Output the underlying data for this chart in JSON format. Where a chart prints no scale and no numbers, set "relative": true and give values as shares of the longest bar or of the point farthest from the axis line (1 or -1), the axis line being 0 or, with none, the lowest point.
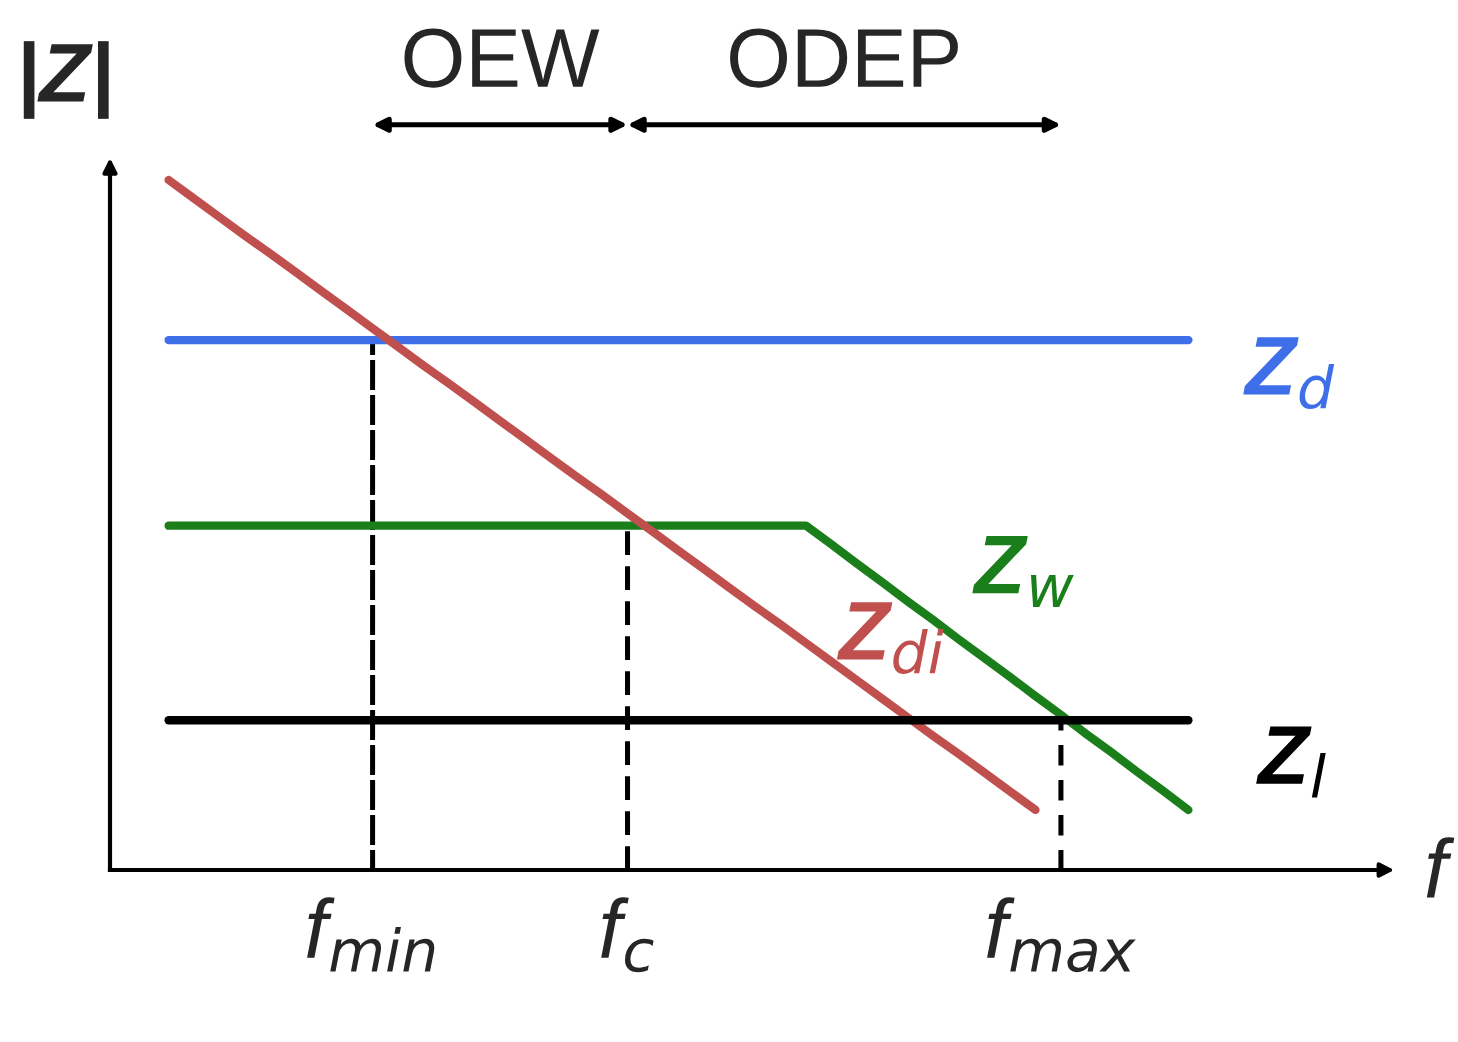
{
  "chart_data": {
    "type": "line",
    "relative": true,
    "xlabel": "f",
    "ylabel": "|Z|",
    "categories": [
      null,
      null,
      null,
      null,
      null,
      null,
      null,
      null,
      "f$_{min}$",
      null,
      null,
      null,
      null,
      null,
      null,
      null,
      null,
      null,
      "f$_{c}$",
      null,
      null,
      null,
      null,
      null,
      null,
      null,
      null,
      null,
      null,
      null,
      null,
      null,
      null,
      null,
      null,
      "f$_{max}$",
      null,
      null,
      null,
      null,
      null
    ],
    "series": [
      {
        "name": "Z$_{d}$",
        "color": "#3f6fe8",
        "values": [
          0.768,
          0.768,
          0.768,
          0.768,
          0.768,
          0.768,
          0.768,
          0.768,
          0.768,
          0.768,
          0.768,
          0.768,
          0.768,
          0.768,
          0.768,
          0.768,
          0.768,
          0.768,
          0.768,
          0.768,
          0.768,
          0.768,
          0.768,
          0.768,
          0.768,
          0.768,
          0.768,
          0.768,
          0.768,
          0.768,
          0.768,
          0.768,
          0.768,
          0.768,
          0.768,
          0.768,
          0.768,
          0.768,
          0.768,
          0.768,
          0.768
        ]
      },
      {
        "name": "Z$_{w}$",
        "color": "#1a7f1a",
        "values": [
          0.499,
          0.499,
          0.499,
          0.499,
          0.499,
          0.499,
          0.499,
          0.499,
          0.499,
          0.499,
          0.499,
          0.499,
          0.499,
          0.499,
          0.499,
          0.499,
          0.499,
          0.499,
          0.499,
          0.499,
          0.499,
          0.499,
          0.499,
          0.499,
          0.499,
          0.499,
          0.472,
          0.444,
          0.417,
          0.389,
          0.362,
          0.334,
          0.307,
          0.28,
          0.252,
          0.225,
          0.197,
          0.17,
          0.142,
          0.115,
          0.087
        ]
      },
      {
        "name": "Z$_{di}$",
        "color": "#c0504d",
        "values": [
          1,
          0.973,
          0.946,
          0.919,
          0.893,
          0.866,
          0.839,
          0.812,
          0.785,
          0.758,
          0.731,
          0.705,
          0.678,
          0.651,
          0.624,
          0.597,
          0.57,
          0.544,
          0.517,
          0.49,
          0.463,
          0.436,
          0.409,
          0.382,
          0.356,
          0.329,
          0.302,
          0.275,
          0.248,
          0.221,
          0.194,
          0.168,
          0.141,
          0.114,
          0.087,
          null,
          null,
          null,
          null,
          null,
          null
        ]
      },
      {
        "name": "Z$_{l}$",
        "color": "#000000",
        "values": [
          0.217,
          0.217,
          0.217,
          0.217,
          0.217,
          0.217,
          0.217,
          0.217,
          0.217,
          0.217,
          0.217,
          0.217,
          0.217,
          0.217,
          0.217,
          0.217,
          0.217,
          0.217,
          0.217,
          0.217,
          0.217,
          0.217,
          0.217,
          0.217,
          0.217,
          0.217,
          0.217,
          0.217,
          0.217,
          0.217,
          0.217,
          0.217,
          0.217,
          0.217,
          0.217,
          0.217,
          0.217,
          0.217,
          0.217,
          0.217,
          0.217
        ]
      },
      {
        "type": "bar",
        "color": "#000000",
        "line_style": "dashed",
        "values": [
          null,
          null,
          null,
          null,
          null,
          null,
          null,
          null,
          0.768,
          null,
          null,
          null,
          null,
          null,
          null,
          null,
          null,
          null,
          0.499,
          null,
          null,
          null,
          null,
          null,
          null,
          null,
          null,
          null,
          null,
          null,
          null,
          null,
          null,
          null,
          null,
          0.217,
          null,
          null,
          null,
          null,
          null
        ]
      }
    ],
    "annotations": [
      "OEW",
      "ODEP"
    ],
    "grid": false
  }
}
